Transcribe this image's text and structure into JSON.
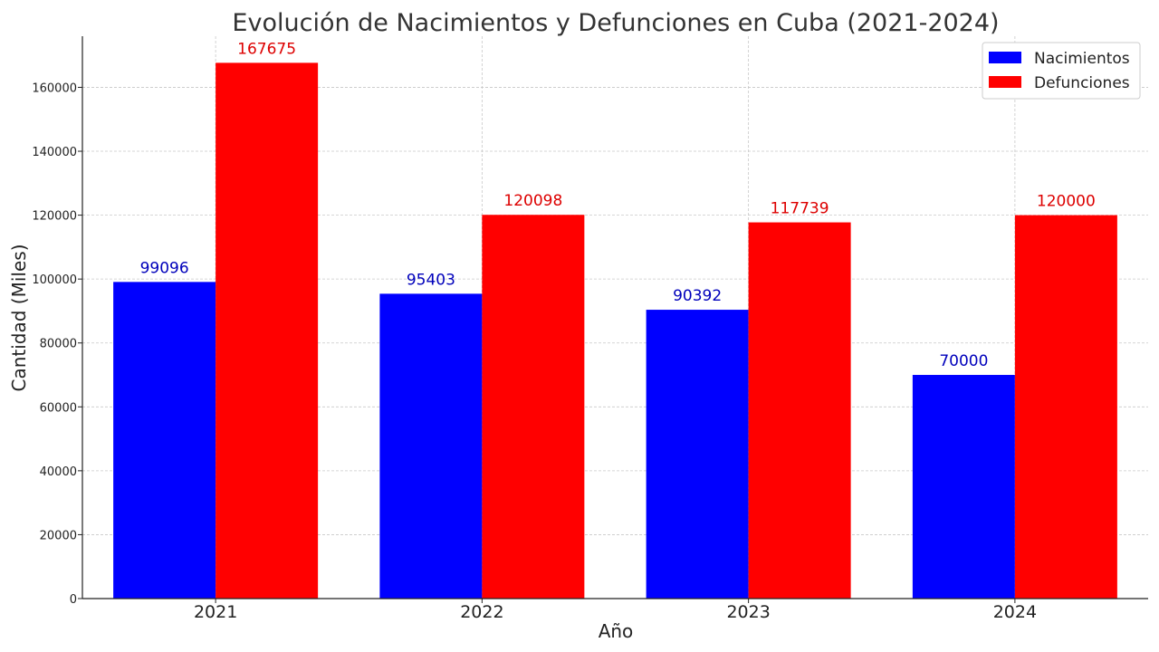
{
  "chart_data": {
    "type": "bar",
    "title": "Evolución de Nacimientos y Defunciones en Cuba (2021-2024)",
    "xlabel": "Año",
    "ylabel": "Cantidad (Miles)",
    "categories": [
      "2021",
      "2022",
      "2023",
      "2024"
    ],
    "series": [
      {
        "name": "Nacimientos",
        "color": "#0000ff",
        "label_color": "#0000bb",
        "values": [
          99096,
          95403,
          90392,
          70000
        ],
        "value_labels": [
          "99096",
          "95403",
          "90392",
          "70000"
        ]
      },
      {
        "name": "Defunciones",
        "color": "#ff0000",
        "label_color": "#dd0000",
        "values": [
          167675,
          120098,
          117739,
          120000
        ],
        "value_labels": [
          "167675",
          "120098",
          "117739",
          "120000"
        ]
      }
    ],
    "ylim": [
      0,
      176000
    ],
    "yticks": [
      0,
      20000,
      40000,
      60000,
      80000,
      100000,
      120000,
      140000,
      160000
    ],
    "ytick_labels": [
      "0",
      "20000",
      "40000",
      "60000",
      "80000",
      "100000",
      "120000",
      "140000",
      "160000"
    ],
    "grid": true,
    "legend_position": "top-right"
  }
}
